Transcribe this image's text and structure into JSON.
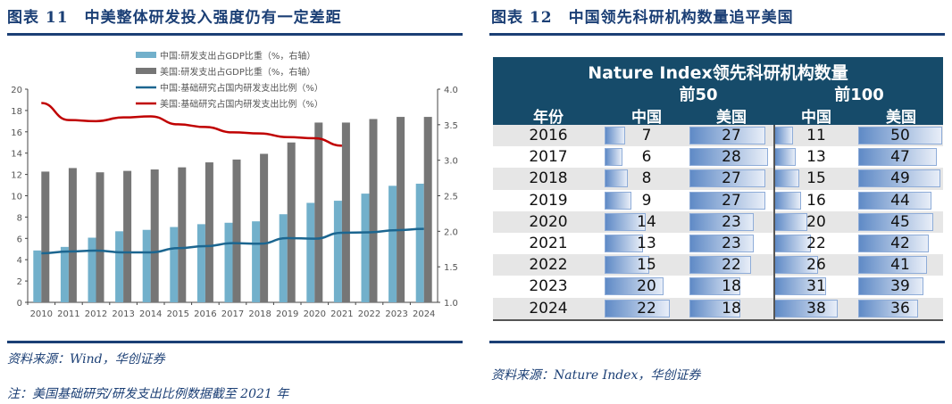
{
  "left": {
    "title": "图表 11　中美整体研发投入强度仍有一定差距",
    "source": "资料来源：Wind，华创证券",
    "note": "注：美国基础研究/研发支出比例数据截至 2021 年"
  },
  "right": {
    "title": "图表 12　中国领先科研机构数量追平美国",
    "source": "资料来源：Nature Index，华创证券"
  },
  "colors": {
    "rule": "#1b3f75",
    "china_bar": "#72b0cb",
    "us_bar": "#767676",
    "china_line": "#1c6690",
    "us_line": "#c00000",
    "table_header": "#164b6a"
  },
  "chart_data": {
    "type": "bar+line",
    "categories": [
      "2010",
      "2011",
      "2012",
      "2013",
      "2014",
      "2015",
      "2016",
      "2017",
      "2018",
      "2019",
      "2020",
      "2021",
      "2022",
      "2023",
      "2024"
    ],
    "left_axis": {
      "ylim": [
        0,
        20
      ],
      "ticks": [
        "0",
        "2",
        "4",
        "6",
        "8",
        "10",
        "12",
        "14",
        "16",
        "18",
        "20"
      ]
    },
    "right_axis": {
      "ylim": [
        1.0,
        4.0
      ],
      "ticks": [
        "1.0",
        "1.5",
        "2.0",
        "2.5",
        "3.0",
        "3.5",
        "4.0"
      ]
    },
    "legend_placement": "top",
    "series": [
      {
        "name": "中国:研发支出占GDP比重（%，右轴）",
        "type": "bar",
        "axis": "right",
        "color": "#72b0cb",
        "values": [
          1.73,
          1.78,
          1.91,
          2.0,
          2.02,
          2.06,
          2.1,
          2.12,
          2.14,
          2.24,
          2.4,
          2.43,
          2.53,
          2.64,
          2.67
        ]
      },
      {
        "name": "美国:研发支出占GDP比重（%，右轴）",
        "type": "bar",
        "axis": "right",
        "color": "#767676",
        "values": [
          2.84,
          2.89,
          2.83,
          2.85,
          2.87,
          2.9,
          2.97,
          3.01,
          3.09,
          3.25,
          3.53,
          3.53,
          3.58,
          3.61,
          3.61
        ]
      },
      {
        "name": "中国:基础研究占国内研发支出比例（%）",
        "type": "line",
        "axis": "left",
        "color": "#1c6690",
        "values": [
          4.6,
          4.77,
          4.85,
          4.69,
          4.69,
          5.08,
          5.27,
          5.55,
          5.5,
          6.03,
          5.97,
          6.53,
          6.57,
          6.77,
          6.89
        ]
      },
      {
        "name": "美国:基础研究占国内研发支出比例（%）",
        "type": "line",
        "axis": "left",
        "color": "#c00000",
        "values": [
          18.7,
          17.1,
          17.0,
          17.35,
          17.45,
          16.7,
          16.45,
          15.95,
          15.85,
          15.5,
          15.4,
          14.7,
          null,
          null,
          null
        ]
      }
    ]
  },
  "table": {
    "title": "Nature Index领先科研机构数量",
    "group_top50": "前50",
    "group_top100": "前100",
    "col_year": "年份",
    "col_china": "中国",
    "col_us": "美国",
    "rows": [
      {
        "year": "2016",
        "cn50": 7,
        "us50": 27,
        "cn100": 11,
        "us100": 50
      },
      {
        "year": "2017",
        "cn50": 6,
        "us50": 28,
        "cn100": 13,
        "us100": 47
      },
      {
        "year": "2018",
        "cn50": 8,
        "us50": 27,
        "cn100": 15,
        "us100": 49
      },
      {
        "year": "2019",
        "cn50": 9,
        "us50": 27,
        "cn100": 16,
        "us100": 44
      },
      {
        "year": "2020",
        "cn50": 14,
        "us50": 23,
        "cn100": 20,
        "us100": 45
      },
      {
        "year": "2021",
        "cn50": 13,
        "us50": 23,
        "cn100": 22,
        "us100": 42
      },
      {
        "year": "2022",
        "cn50": 15,
        "us50": 22,
        "cn100": 26,
        "us100": 41
      },
      {
        "year": "2023",
        "cn50": 20,
        "us50": 18,
        "cn100": 31,
        "us100": 39
      },
      {
        "year": "2024",
        "cn50": 22,
        "us50": 18,
        "cn100": 38,
        "us100": 36
      }
    ]
  }
}
